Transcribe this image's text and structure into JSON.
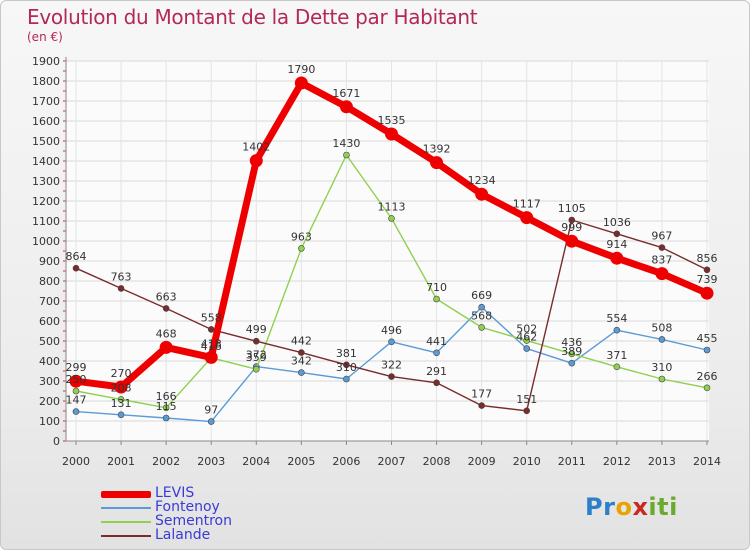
{
  "header": {
    "title": "Evolution du Montant de la Dette par Habitant",
    "unit": "(en €)"
  },
  "logo": {
    "letters": [
      "P",
      "r",
      "o",
      "x",
      "i",
      "t",
      "i"
    ],
    "colors": [
      "#2c7fc9",
      "#2c7fc9",
      "#e8a300",
      "#c8281e",
      "#6aaa2c",
      "#6aaa2c",
      "#6aaa2c"
    ]
  },
  "chart_data": {
    "type": "line",
    "title": "Evolution du Montant de la Dette par Habitant",
    "subtitle": "(en €)",
    "xlabel": "",
    "ylabel": "",
    "ylim": [
      0,
      1900
    ],
    "yticks": [
      "0",
      "100",
      "200",
      "300",
      "400",
      "500",
      "600",
      "700",
      "800",
      "900",
      "1000",
      "1100",
      "1200",
      "1300",
      "1400",
      "1500",
      "1600",
      "1700",
      "1800",
      "1900"
    ],
    "categories": [
      "2000",
      "2001",
      "2002",
      "2003",
      "2004",
      "2005",
      "2006",
      "2007",
      "2008",
      "2009",
      "2010",
      "2011",
      "2012",
      "2013",
      "2014"
    ],
    "grid": true,
    "legend_position": "bottom-left",
    "series": [
      {
        "name": "LEVIS",
        "color": "#ee0000",
        "values": [
          299,
          270,
          468,
          418,
          1402,
          1790,
          1671,
          1535,
          1392,
          1234,
          1117,
          999,
          914,
          837,
          739
        ],
        "labels": [
          "299",
          "270",
          "468",
          "418",
          "1402",
          "1790",
          "1671",
          "1535",
          "1392",
          "1234",
          "1117",
          "999",
          "914",
          "837",
          "739"
        ]
      },
      {
        "name": "Fontenoy",
        "color": "#5b9bd5",
        "values": [
          147,
          131,
          115,
          97,
          372,
          342,
          310,
          496,
          441,
          669,
          462,
          389,
          554,
          508,
          455
        ],
        "labels": [
          "147",
          "131",
          "115",
          "97",
          "372",
          "342",
          "310",
          "496",
          "441",
          "669",
          "462",
          "389",
          "554",
          "508",
          "455"
        ]
      },
      {
        "name": "Sementron",
        "color": "#8fd14f",
        "values": [
          250,
          208,
          166,
          416,
          359,
          963,
          1430,
          1113,
          710,
          568,
          502,
          436,
          371,
          310,
          266
        ],
        "labels": [
          "250",
          "208",
          "166",
          "416",
          "359",
          "963",
          "1430",
          "1113",
          "710",
          "568",
          "502",
          "436",
          "371",
          "310",
          "266"
        ]
      },
      {
        "name": "Lalande",
        "color": "#7a2c2c",
        "values": [
          864,
          763,
          663,
          558,
          499,
          442,
          381,
          322,
          291,
          177,
          151,
          1105,
          1036,
          967,
          856
        ],
        "labels": [
          "864",
          "763",
          "663",
          "558",
          "499",
          "442",
          "381",
          "322",
          "291",
          "177",
          "151",
          "1105",
          "1036",
          "967",
          "856"
        ]
      }
    ]
  }
}
